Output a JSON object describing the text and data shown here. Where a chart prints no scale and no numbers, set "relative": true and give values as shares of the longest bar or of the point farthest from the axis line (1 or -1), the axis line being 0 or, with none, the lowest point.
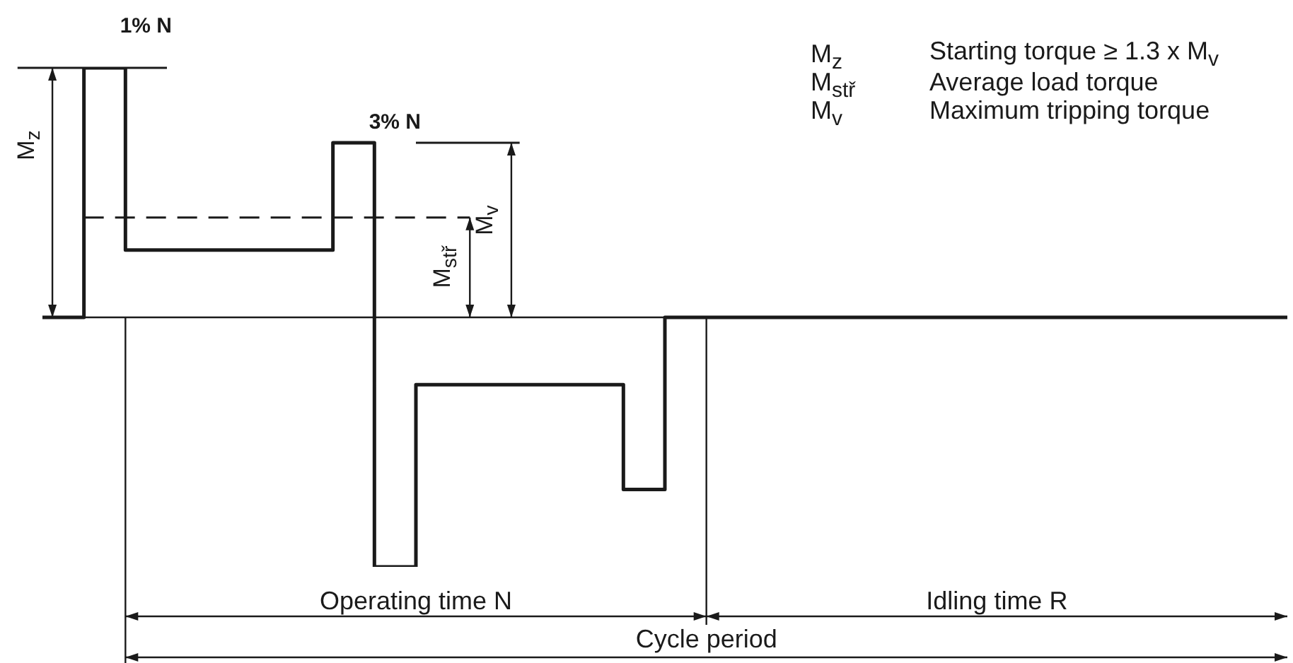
{
  "chart_data": {
    "type": "step",
    "relative": true,
    "color": "#1a1a1a",
    "categories": [
      null,
      null,
      null,
      null,
      null,
      null,
      null,
      null,
      null,
      null,
      null,
      null,
      null,
      null,
      null,
      null,
      null,
      null,
      null,
      null,
      null,
      null,
      null,
      null,
      null,
      null,
      null,
      null,
      null,
      null,
      null
    ],
    "values": [
      0,
      0,
      1,
      0.27,
      0.27,
      0.27,
      0.27,
      0.27,
      0.7,
      -1,
      -0.27,
      -0.27,
      -0.27,
      -0.27,
      -0.27,
      -0.69,
      0,
      0,
      0,
      0,
      0,
      0,
      0,
      0,
      0,
      0,
      0,
      0,
      0,
      0,
      0
    ],
    "ref_lines": [
      {
        "axis": "y",
        "value": 1,
        "label": "M$_{z}$"
      },
      {
        "axis": "y",
        "value": 0.7,
        "label": "M$_{v}$"
      },
      {
        "axis": "y",
        "value": 0.4,
        "label": "M$_{stř}$",
        "line_style": "dashed"
      }
    ],
    "annotations": [
      "1% N",
      "3% N",
      "M$_{z}$",
      "Starting torque ≥ 1.3 x M$_{v}$",
      "M$_{stř}$",
      "Average load torque",
      "M$_{v}$",
      "Maximum tripping torque",
      "Operating time N",
      "Idling time R",
      "Cycle period"
    ]
  }
}
